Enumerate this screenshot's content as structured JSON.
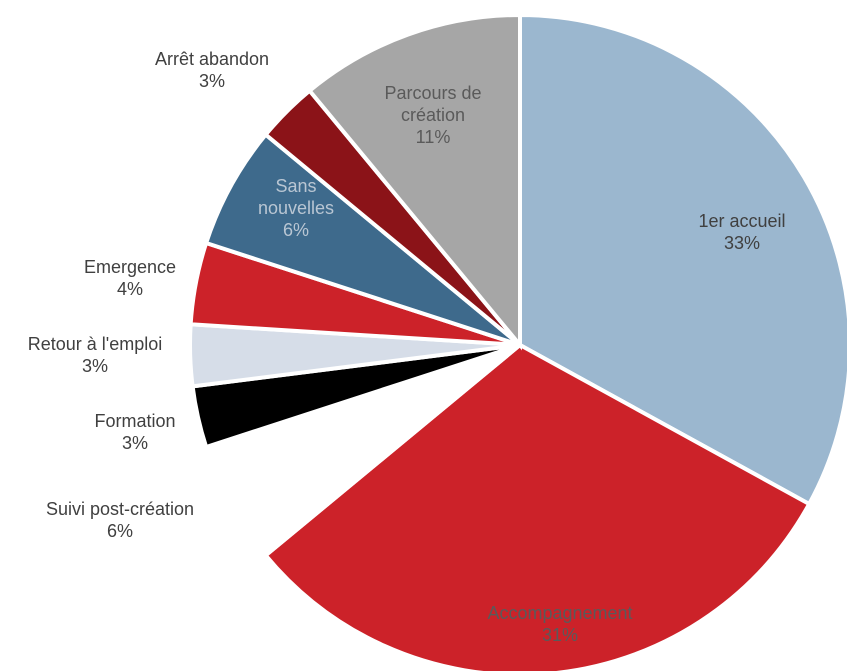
{
  "chart_data": {
    "type": "pie",
    "categories": [
      "1er accueil",
      "Accompagnement",
      "Suivi post-création",
      "Formation",
      "Retour à l'emploi",
      "Emergence",
      "Sans nouvelles",
      "Arrêt abandon",
      "Parcours de création"
    ],
    "values": [
      33,
      31,
      6,
      3,
      3,
      4,
      6,
      3,
      11
    ],
    "value_labels": [
      "33%",
      "31%",
      "6%",
      "3%",
      "3%",
      "4%",
      "6%",
      "3%",
      "11%"
    ],
    "colors": [
      "#9bb7cf",
      "#cc2229",
      "#ffffff",
      "#000000",
      "#d6dde8",
      "#cc2229",
      "#3e6a8c",
      "#8b1318",
      "#a6a6a6"
    ]
  }
}
